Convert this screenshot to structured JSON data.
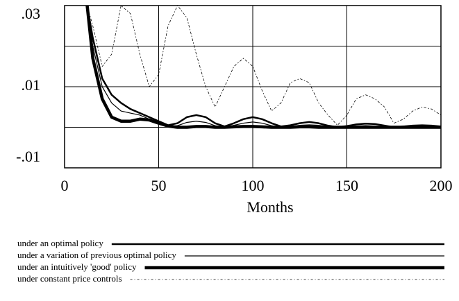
{
  "chart_data": {
    "type": "line",
    "x_label": "Months",
    "x": [
      12,
      15,
      20,
      25,
      30,
      35,
      40,
      45,
      50,
      55,
      60,
      65,
      70,
      75,
      80,
      85,
      90,
      95,
      100,
      105,
      110,
      115,
      120,
      125,
      130,
      135,
      140,
      145,
      150,
      155,
      160,
      165,
      170,
      175,
      180,
      185,
      190,
      195,
      200
    ],
    "xlim": [
      0,
      200
    ],
    "xticks": [
      0,
      50,
      100,
      150,
      200
    ],
    "ylim": [
      -0.01,
      0.03
    ],
    "yticks": [
      {
        "value": 0.03,
        "label": ".03"
      },
      {
        "value": 0.01,
        "label": ".01"
      },
      {
        "value": -0.01,
        "label": "-.01"
      }
    ],
    "minor_yticks": [
      0.02,
      0
    ],
    "grid": true,
    "legend": "bottom",
    "series": [
      {
        "name": "under an optimal policy",
        "color": "#000000",
        "line_width": 2.5,
        "dash": "solid",
        "values": [
          0.03,
          0.022,
          0.012,
          0.008,
          0.006,
          0.0045,
          0.0035,
          0.0025,
          0.0015,
          0.0005,
          0.001,
          0.0025,
          0.003,
          0.0025,
          0.001,
          0.0002,
          0.001,
          0.002,
          0.0025,
          0.002,
          0.001,
          0.0002,
          0.0005,
          0.001,
          0.0013,
          0.001,
          0.0004,
          0,
          0.0003,
          0.0007,
          0.0009,
          0.0008,
          0.0004,
          0,
          0.0002,
          0.0004,
          0.0005,
          0.0004,
          0.0002
        ]
      },
      {
        "name": "under a  variation of previous optimal policy",
        "color": "#000000",
        "line_width": 1.2,
        "dash": "solid",
        "values": [
          0.03,
          0.02,
          0.01,
          0.006,
          0.004,
          0.0035,
          0.003,
          0.002,
          0.001,
          0.0002,
          0.0004,
          0.0012,
          0.0015,
          0.0012,
          0.0004,
          0,
          0.0005,
          0.001,
          0.0013,
          0.001,
          0.0004,
          0,
          0.0002,
          0.0005,
          0.0006,
          0.0005,
          0.0002,
          0,
          0.0001,
          0.0003,
          0.0004,
          0.0003,
          0.0001,
          0,
          0.0001,
          0.0002,
          0.0002,
          0.0001,
          0
        ]
      },
      {
        "name": "under an intuitively 'good' policy",
        "color": "#000000",
        "line_width": 4.5,
        "dash": "solid",
        "values": [
          0.03,
          0.017,
          0.007,
          0.0025,
          0.0015,
          0.0015,
          0.002,
          0.0018,
          0.001,
          0.0003,
          0,
          0,
          0.0002,
          0.0002,
          0,
          0,
          0.0001,
          0.0002,
          0.0002,
          0.0001,
          0,
          0,
          0,
          0.0001,
          0.0001,
          0,
          0,
          0,
          0,
          0,
          0,
          0,
          0,
          0,
          0,
          0,
          0,
          0,
          0
        ]
      },
      {
        "name": "under constant price controls",
        "color": "#000000",
        "line_width": 0.8,
        "dash": "dotted",
        "values": [
          0.03,
          0.025,
          0.015,
          0.018,
          0.03,
          0.028,
          0.018,
          0.01,
          0.013,
          0.025,
          0.03,
          0.027,
          0.018,
          0.01,
          0.005,
          0.01,
          0.015,
          0.017,
          0.015,
          0.009,
          0.004,
          0.006,
          0.011,
          0.012,
          0.011,
          0.006,
          0.003,
          0.0005,
          0.003,
          0.007,
          0.008,
          0.007,
          0.005,
          0.001,
          0.002,
          0.004,
          0.005,
          0.0045,
          0.003
        ]
      }
    ]
  }
}
